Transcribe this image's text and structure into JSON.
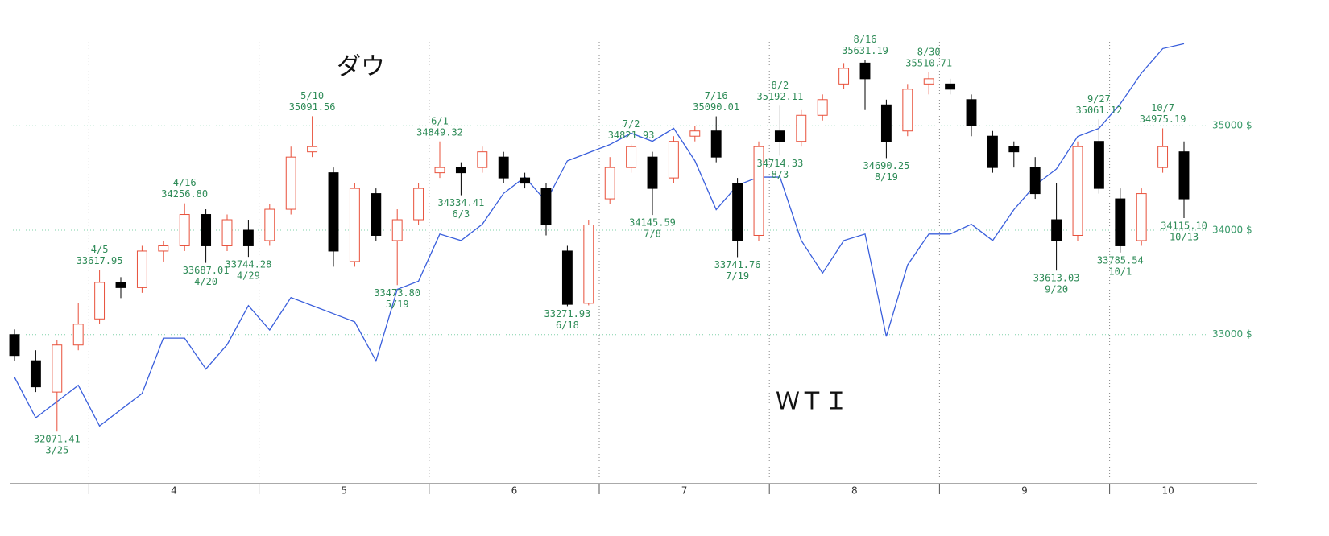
{
  "chart_data": {
    "type": "candlestick",
    "categories": [
      null,
      null,
      null,
      null,
      "4",
      null,
      null,
      null,
      null,
      null,
      null,
      null,
      "5",
      null,
      null,
      null,
      null,
      null,
      null,
      null,
      "6",
      null,
      null,
      null,
      null,
      null,
      null,
      null,
      "7",
      null,
      null,
      null,
      null,
      null,
      null,
      null,
      "8",
      null,
      null,
      null,
      null,
      null,
      null,
      null,
      "9",
      null,
      null,
      null,
      null,
      null,
      null,
      null,
      "10",
      null,
      null,
      null
    ],
    "series": [
      {
        "name": "ダウ",
        "up_color": "#e8503a",
        "down_color": "#000000",
        "open": [
          33000,
          32750,
          32450,
          32900,
          33150,
          33500,
          33450,
          33800,
          33850,
          34150,
          33850,
          34000,
          33900,
          34200,
          34750,
          34550,
          33700,
          34350,
          33900,
          34100,
          34550,
          34600,
          34600,
          34700,
          34500,
          34400,
          33800,
          33300,
          34300,
          34600,
          34700,
          34500,
          34900,
          34950,
          34450,
          33950,
          34950,
          34850,
          35100,
          35400,
          35600,
          35200,
          34950,
          35400,
          35400,
          35250,
          34900,
          34800,
          34600,
          34100,
          33950,
          34850,
          34300,
          33900,
          34600,
          34750
        ],
        "high": [
          33050,
          32850,
          32950,
          33300,
          33617.95,
          33550,
          33850,
          33900,
          34256.8,
          34200,
          34150,
          34100,
          34250,
          34800,
          35091.56,
          34600,
          34450,
          34400,
          34200,
          34450,
          34849.32,
          34650,
          34800,
          34750,
          34550,
          34450,
          33850,
          34100,
          34700,
          34821.93,
          34750,
          34900,
          35000,
          35090.01,
          34500,
          34850,
          35192.11,
          35150,
          35300,
          35600,
          35631.19,
          35250,
          35400,
          35510.71,
          35450,
          35300,
          34950,
          34850,
          34700,
          34450,
          34850,
          35061.12,
          34400,
          34400,
          34975.19,
          34850
        ],
        "low": [
          32750,
          32450,
          32071.41,
          32850,
          33100,
          33350,
          33400,
          33700,
          33800,
          33687.01,
          33800,
          33744.28,
          33850,
          34150,
          34700,
          33650,
          33650,
          33900,
          33473.8,
          34050,
          34500,
          34334.41,
          34550,
          34450,
          34400,
          33950,
          33271.93,
          33280,
          34250,
          34550,
          34145.59,
          34450,
          34850,
          34650,
          33741.76,
          33900,
          34714.33,
          34800,
          35050,
          35350,
          35150,
          34690.25,
          34900,
          35300,
          35300,
          34900,
          34550,
          34600,
          34300,
          33613.03,
          33900,
          34350,
          33785.54,
          33850,
          34550,
          34115.1
        ],
        "close": [
          32800,
          32500,
          32900,
          33100,
          33500,
          33450,
          33800,
          33850,
          34150,
          33850,
          34100,
          33850,
          34200,
          34700,
          34800,
          33800,
          34400,
          33950,
          34100,
          34400,
          34600,
          34550,
          34750,
          34500,
          34450,
          34050,
          33290,
          34050,
          34600,
          34800,
          34400,
          34850,
          34950,
          34700,
          33900,
          34800,
          34850,
          35100,
          35250,
          35550,
          35450,
          34850,
          35350,
          35450,
          35350,
          35000,
          34600,
          34750,
          34350,
          33900,
          34800,
          34400,
          33850,
          34350,
          34800,
          34300
        ]
      },
      {
        "name": "ＷＴＩ",
        "color": "#3a5fdc",
        "axis": "y2",
        "values": [
          60.5,
          58.0,
          59.0,
          60.0,
          57.5,
          58.5,
          59.5,
          62.9,
          62.9,
          61.0,
          62.5,
          64.9,
          63.4,
          65.4,
          64.9,
          64.4,
          63.9,
          61.5,
          65.9,
          66.4,
          69.3,
          68.9,
          69.9,
          71.8,
          72.8,
          71.3,
          73.8,
          74.3,
          74.8,
          75.5,
          75.0,
          75.8,
          73.8,
          70.8,
          72.3,
          72.8,
          72.8,
          68.9,
          66.9,
          68.9,
          69.3,
          63.0,
          67.4,
          69.3,
          69.3,
          69.9,
          68.9,
          70.8,
          72.3,
          73.3,
          75.3,
          75.8,
          77.3,
          79.2,
          80.7,
          81.0
        ]
      }
    ],
    "ylim": [
      31580,
      36050
    ],
    "yticks": [
      {
        "value": 33000,
        "label": "33000 $"
      },
      {
        "value": 34000,
        "label": "34000 $"
      },
      {
        "value": 35000,
        "label": "35000 $"
      }
    ],
    "y2lim": [
      54,
      82.7
    ],
    "grid": true,
    "annotations": [
      {
        "value": 32071.41,
        "date": "3/25"
      },
      {
        "value": 33617.95,
        "date": "4/5"
      },
      {
        "value": 34256.8,
        "label": "34256.80",
        "date": "4/16"
      },
      {
        "value": 33687.01,
        "date": "4/20"
      },
      {
        "value": 33744.28,
        "date": "4/29"
      },
      {
        "value": 35091.56,
        "date": "5/10"
      },
      {
        "value": 33473.8,
        "label": "33473.80",
        "date": "5/19"
      },
      {
        "value": 34849.32,
        "date": "6/1"
      },
      {
        "value": 34334.41,
        "date": "6/3"
      },
      {
        "value": 33271.93,
        "date": "6/18"
      },
      {
        "value": 34821.93,
        "date": "7/2"
      },
      {
        "value": 34145.59,
        "date": "7/8"
      },
      {
        "value": 35090.01,
        "date": "7/16"
      },
      {
        "value": 33741.76,
        "date": "7/19"
      },
      {
        "value": 35192.11,
        "date": "8/2"
      },
      {
        "value": 34714.33,
        "date": "8/3"
      },
      {
        "value": 35631.19,
        "date": "8/16"
      },
      {
        "value": 34690.25,
        "date": "8/19"
      },
      {
        "value": 35510.71,
        "date": "8/30"
      },
      {
        "value": 33613.03,
        "date": "9/20"
      },
      {
        "value": 35061.12,
        "date": "9/27"
      },
      {
        "value": 33785.54,
        "date": "10/1"
      },
      {
        "value": 34975.19,
        "date": "10/7"
      },
      {
        "value": 34115.1,
        "label": "34115.10",
        "date": "10/13"
      }
    ]
  }
}
